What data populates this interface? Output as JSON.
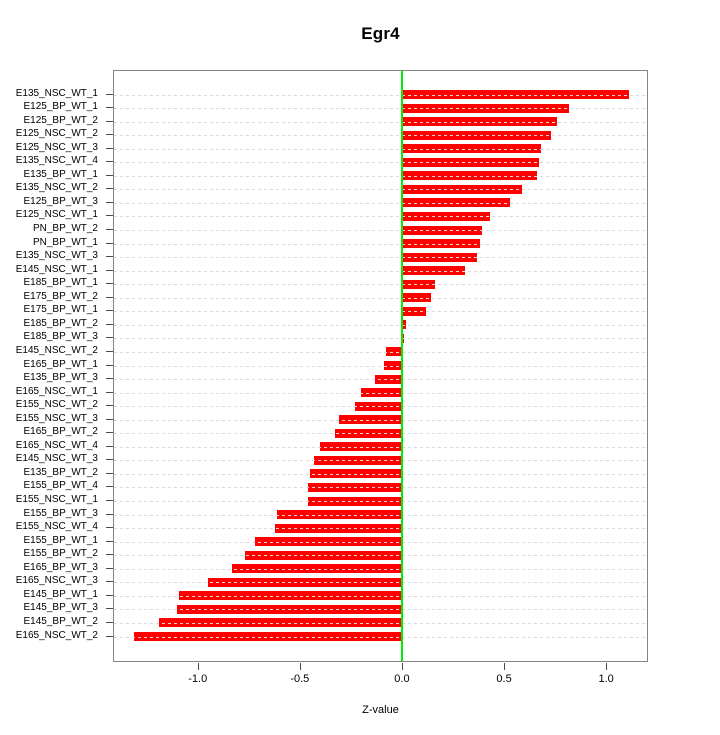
{
  "title": "Egr4",
  "chart_data": {
    "type": "bar",
    "orientation": "horizontal",
    "title": "Egr4",
    "xlabel": "Z-value",
    "ylabel": "",
    "xlim": [
      -1.41,
      1.2
    ],
    "x_ticks": [
      -1.0,
      -0.5,
      0.0,
      0.5,
      1.0
    ],
    "x_tick_labels": [
      "-1.0",
      "-0.5",
      "0.0",
      "0.5",
      "1.0"
    ],
    "grid": "dotted-row-lines",
    "legend": "none",
    "bar_color": "#ff0000",
    "zero_line_color": "#00ee00",
    "categories": [
      "E135_NSC_WT_1",
      "E125_BP_WT_1",
      "E125_BP_WT_2",
      "E125_NSC_WT_2",
      "E125_NSC_WT_3",
      "E135_NSC_WT_4",
      "E135_BP_WT_1",
      "E135_NSC_WT_2",
      "E125_BP_WT_3",
      "E125_NSC_WT_1",
      "PN_BP_WT_2",
      "PN_BP_WT_1",
      "E135_NSC_WT_3",
      "E145_NSC_WT_1",
      "E185_BP_WT_1",
      "E175_BP_WT_2",
      "E175_BP_WT_1",
      "E185_BP_WT_2",
      "E185_BP_WT_3",
      "E145_NSC_WT_2",
      "E165_BP_WT_1",
      "E135_BP_WT_3",
      "E165_NSC_WT_1",
      "E155_NSC_WT_2",
      "E155_NSC_WT_3",
      "E165_BP_WT_2",
      "E165_NSC_WT_4",
      "E145_NSC_WT_3",
      "E135_BP_WT_2",
      "E155_BP_WT_4",
      "E155_NSC_WT_1",
      "E155_BP_WT_3",
      "E155_NSC_WT_4",
      "E155_BP_WT_1",
      "E155_BP_WT_2",
      "E165_BP_WT_3",
      "E165_NSC_WT_3",
      "E145_BP_WT_1",
      "E145_BP_WT_3",
      "E145_BP_WT_2",
      "E165_NSC_WT_2"
    ],
    "values": [
      1.11,
      0.82,
      0.76,
      0.73,
      0.68,
      0.67,
      0.66,
      0.59,
      0.53,
      0.43,
      0.39,
      0.38,
      0.37,
      0.31,
      0.16,
      0.14,
      0.12,
      0.02,
      0.01,
      -0.08,
      -0.09,
      -0.13,
      -0.2,
      -0.23,
      -0.31,
      -0.33,
      -0.4,
      -0.43,
      -0.45,
      -0.46,
      -0.46,
      -0.61,
      -0.62,
      -0.72,
      -0.77,
      -0.83,
      -0.95,
      -1.09,
      -1.1,
      -1.19,
      -1.31
    ]
  }
}
